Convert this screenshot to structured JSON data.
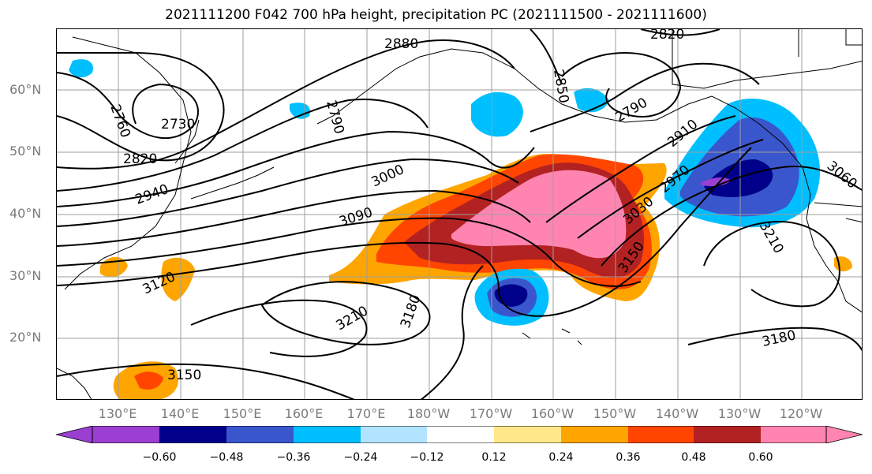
{
  "title": "2021111200 F042 700 hPa height, precipitation PC (2021111500 - 2021111600)",
  "latitude_labels": [
    "60°N",
    "50°N",
    "40°N",
    "30°N",
    "20°N"
  ],
  "longitude_labels": [
    "130°E",
    "140°E",
    "150°E",
    "160°E",
    "170°E",
    "180°W",
    "170°W",
    "160°W",
    "150°W",
    "140°W",
    "130°W",
    "120°W"
  ],
  "contour_labels": [
    "2880",
    "2820",
    "2850",
    "2790",
    "2790",
    "2760",
    "2730",
    "2820",
    "2940",
    "3000",
    "3090",
    "2910",
    "2970",
    "3030",
    "3060",
    "3210",
    "3150",
    "3120",
    "3210",
    "3180",
    "3180",
    "3150"
  ],
  "colorbar": {
    "ticks": [
      "−0.60",
      "−0.48",
      "−0.36",
      "−0.24",
      "−0.12",
      "0.12",
      "0.24",
      "0.36",
      "0.48",
      "0.60"
    ],
    "colors": [
      "#9a3fd1",
      "#00008b",
      "#3a56cc",
      "#00bfff",
      "#b3e4ff",
      "#ffffff",
      "#ffe98a",
      "#ffa500",
      "#ff4500",
      "#b22222",
      "#ff85b0"
    ]
  },
  "colors": {
    "grid": "#9e9e9e",
    "contour": "#000000",
    "axis_label": "#7a7a7a"
  }
}
